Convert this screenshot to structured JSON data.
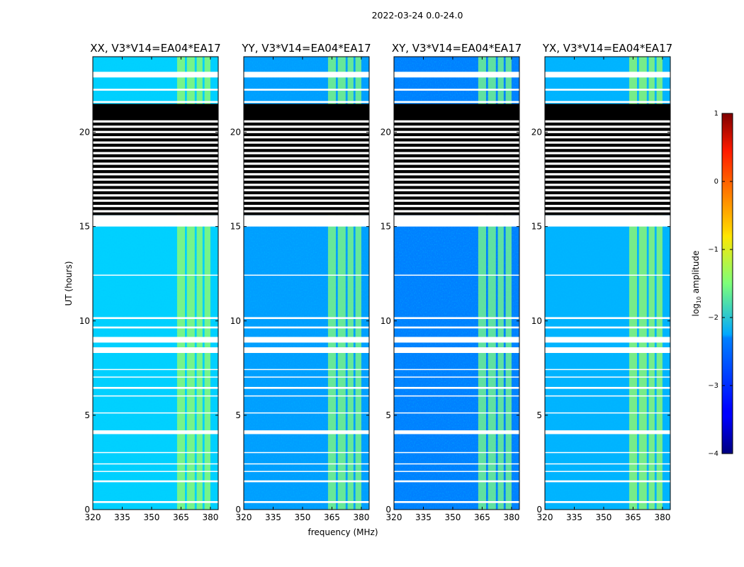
{
  "chart_data": {
    "type": "heatmap",
    "suptitle": "2022-03-24 0.0-24.0",
    "xlabel": "frequency (MHz)",
    "ylabel": "UT (hours)",
    "xlim": [
      320,
      384
    ],
    "ylim": [
      0,
      24
    ],
    "xticks": [
      320,
      335,
      350,
      365,
      380
    ],
    "yticks": [
      0,
      5,
      10,
      15,
      20
    ],
    "panels": [
      {
        "title": "XX, V3*V14=EA04*EA17",
        "pol": "XX"
      },
      {
        "title": "YY, V3*V14=EA04*EA17",
        "pol": "YY"
      },
      {
        "title": "XY, V3*V14=EA04*EA17",
        "pol": "XY"
      },
      {
        "title": "YX, V3*V14=EA04*EA17",
        "pol": "YX"
      }
    ],
    "colorbar": {
      "label_prefix": "log",
      "label_sub": "10",
      "label_suffix": " amplitude",
      "range": [
        -4,
        1
      ],
      "ticks": [
        1,
        0,
        -1,
        -2,
        -3,
        -4
      ],
      "tick_labels": [
        "1",
        "0",
        "−1",
        "−2",
        "−3",
        "−4"
      ],
      "colormap": "jet"
    },
    "rfi_bands_mhz": [
      [
        363,
        367
      ],
      [
        368,
        372
      ],
      [
        373,
        376
      ],
      [
        377,
        380
      ]
    ],
    "flagged_hours": [
      [
        0.35,
        0.45
      ],
      [
        1.45,
        1.55
      ],
      [
        2.0,
        2.05
      ],
      [
        2.4,
        2.45
      ],
      [
        3.0,
        3.05
      ],
      [
        4.0,
        4.2
      ],
      [
        5.1,
        5.15
      ],
      [
        6.0,
        6.05
      ],
      [
        6.4,
        6.5
      ],
      [
        7.0,
        7.05
      ],
      [
        7.4,
        7.45
      ],
      [
        8.3,
        8.6
      ],
      [
        8.85,
        9.15
      ],
      [
        9.6,
        9.7
      ],
      [
        10.1,
        10.2
      ],
      [
        12.4,
        12.45
      ],
      [
        15.0,
        15.6
      ],
      [
        21.55,
        21.65
      ],
      [
        22.2,
        22.3
      ],
      [
        22.9,
        23.2
      ]
    ],
    "black_band_hours": [
      15.6,
      21.5
    ]
  }
}
